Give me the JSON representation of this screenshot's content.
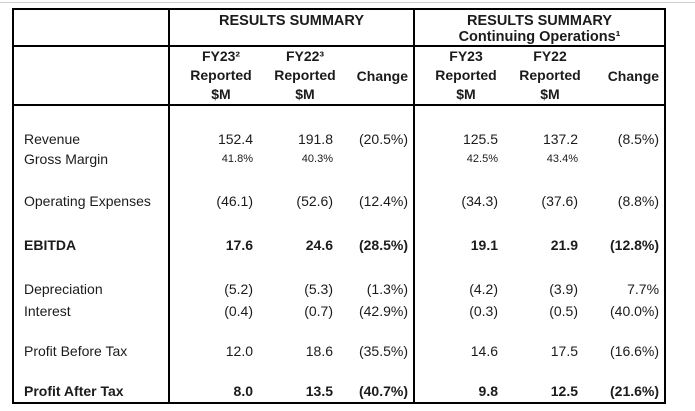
{
  "table": {
    "sections": [
      {
        "title": "RESULTS SUMMARY",
        "subtitle": "",
        "columns": [
          {
            "line1": "FY23²",
            "line2": "Reported",
            "line3": "$M"
          },
          {
            "line1": "FY22³",
            "line2": "Reported",
            "line3": "$M"
          },
          {
            "label": "Change"
          }
        ]
      },
      {
        "title": "RESULTS SUMMARY",
        "subtitle": "Continuing Operations¹",
        "columns": [
          {
            "line1": "FY23",
            "line2": "Reported",
            "line3": "$M"
          },
          {
            "line1": "FY22",
            "line2": "Reported",
            "line3": "$M"
          },
          {
            "label": "Change"
          }
        ]
      }
    ],
    "rows": [
      {
        "label": "Revenue",
        "left": [
          "152.4",
          "191.8",
          "(20.5%)"
        ],
        "right": [
          "125.5",
          "137.2",
          "(8.5%)"
        ]
      },
      {
        "label": "Gross Margin",
        "left": [
          "41.8%",
          "40.3%",
          ""
        ],
        "right": [
          "42.5%",
          "43.4%",
          ""
        ]
      },
      {
        "label": "Operating Expenses",
        "left": [
          "(46.1)",
          "(52.6)",
          "(12.4%)"
        ],
        "right": [
          "(34.3)",
          "(37.6)",
          "(8.8%)"
        ]
      },
      {
        "label": "EBITDA",
        "left": [
          "17.6",
          "24.6",
          "(28.5%)"
        ],
        "right": [
          "19.1",
          "21.9",
          "(12.8%)"
        ]
      },
      {
        "label": "Depreciation",
        "left": [
          "(5.2)",
          "(5.3)",
          "(1.3%)"
        ],
        "right": [
          "(4.2)",
          "(3.9)",
          "7.7%"
        ]
      },
      {
        "label": "Interest",
        "left": [
          "(0.4)",
          "(0.7)",
          "(42.9%)"
        ],
        "right": [
          "(0.3)",
          "(0.5)",
          "(40.0%)"
        ]
      },
      {
        "label": "Profit Before Tax",
        "left": [
          "12.0",
          "18.6",
          "(35.5%)"
        ],
        "right": [
          "14.6",
          "17.5",
          "(16.6%)"
        ]
      },
      {
        "label": "Profit After Tax",
        "left": [
          "8.0",
          "13.5",
          "(40.7%)"
        ],
        "right": [
          "9.8",
          "12.5",
          "(21.6%)"
        ]
      }
    ]
  }
}
